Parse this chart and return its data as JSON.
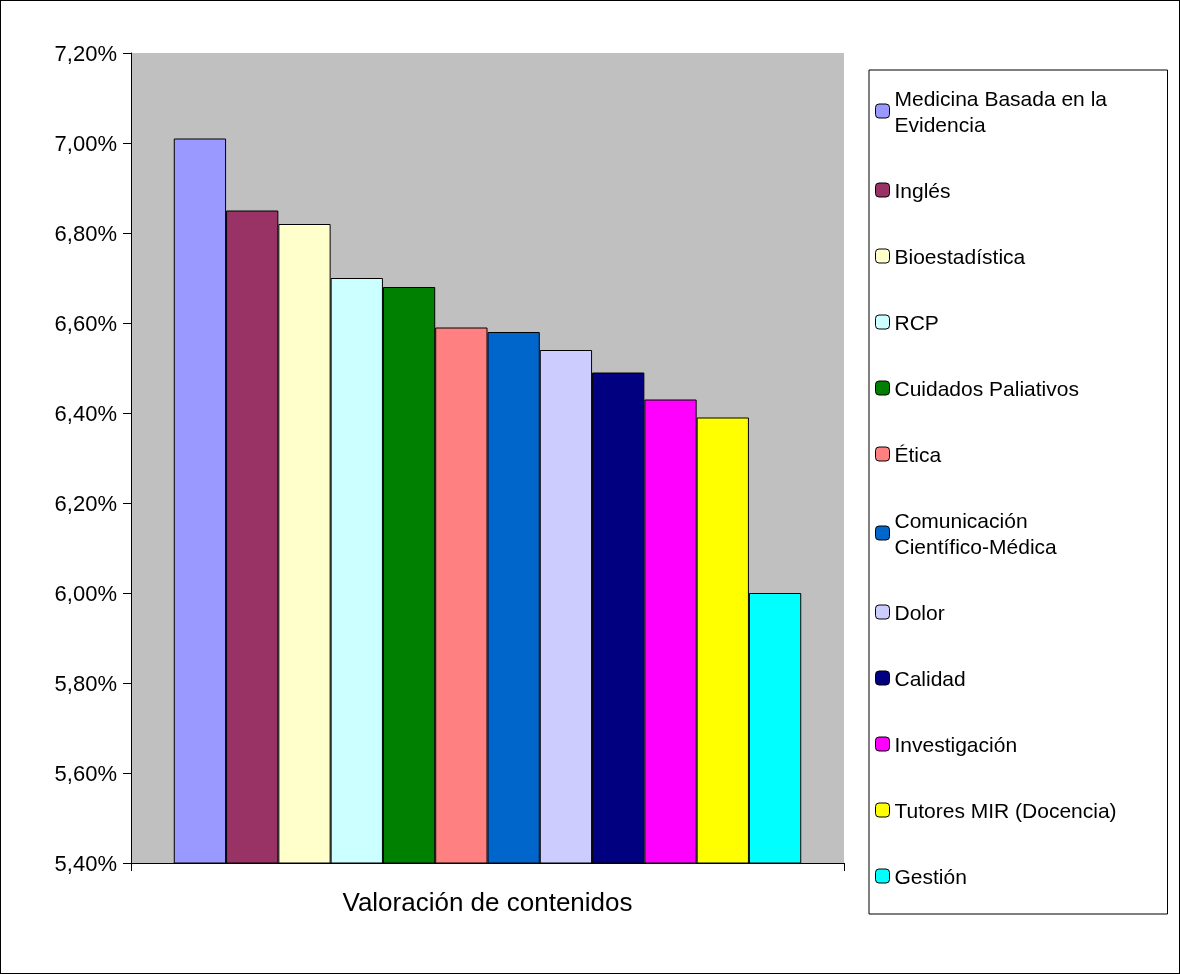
{
  "chart_data": {
    "type": "bar",
    "categories": [
      "Valoración de contenidos"
    ],
    "series": [
      {
        "name": "Medicina Basada en la Evidencia",
        "color": "#9999ff",
        "values": [
          7.01
        ]
      },
      {
        "name": "Inglés",
        "color": "#993366",
        "values": [
          6.85
        ]
      },
      {
        "name": "Bioestadística",
        "color": "#ffffcc",
        "values": [
          6.82
        ]
      },
      {
        "name": "RCP",
        "color": "#ccffff",
        "values": [
          6.7
        ]
      },
      {
        "name": "Cuidados Paliativos",
        "color": "#008000",
        "values": [
          6.68
        ]
      },
      {
        "name": "Ética",
        "color": "#ff8080",
        "values": [
          6.59
        ]
      },
      {
        "name": "Comunicación Científico-Médica",
        "color": "#0066cc",
        "values": [
          6.58
        ]
      },
      {
        "name": "Dolor",
        "color": "#ccccff",
        "values": [
          6.54
        ]
      },
      {
        "name": "Calidad",
        "color": "#000080",
        "values": [
          6.49
        ]
      },
      {
        "name": "Investigación",
        "color": "#ff00ff",
        "values": [
          6.43
        ]
      },
      {
        "name": "Tutores MIR (Docencia)",
        "color": "#ffff00",
        "values": [
          6.39
        ]
      },
      {
        "name": "Gestión",
        "color": "#00ffff",
        "values": [
          6.0
        ]
      }
    ],
    "ylim": [
      5.4,
      7.2
    ],
    "yticks": [
      {
        "value": 5.4,
        "label": "5,40%"
      },
      {
        "value": 5.6,
        "label": "5,60%"
      },
      {
        "value": 5.8,
        "label": "5,80%"
      },
      {
        "value": 6.0,
        "label": "6,00%"
      },
      {
        "value": 6.2,
        "label": "6,20%"
      },
      {
        "value": 6.4,
        "label": "6,40%"
      },
      {
        "value": 6.6,
        "label": "6,60%"
      },
      {
        "value": 6.8,
        "label": "6,80%"
      },
      {
        "value": 7.0,
        "label": "7,00%"
      },
      {
        "value": 7.2,
        "label": "7,20%"
      }
    ],
    "grid": false,
    "legend": "right"
  }
}
